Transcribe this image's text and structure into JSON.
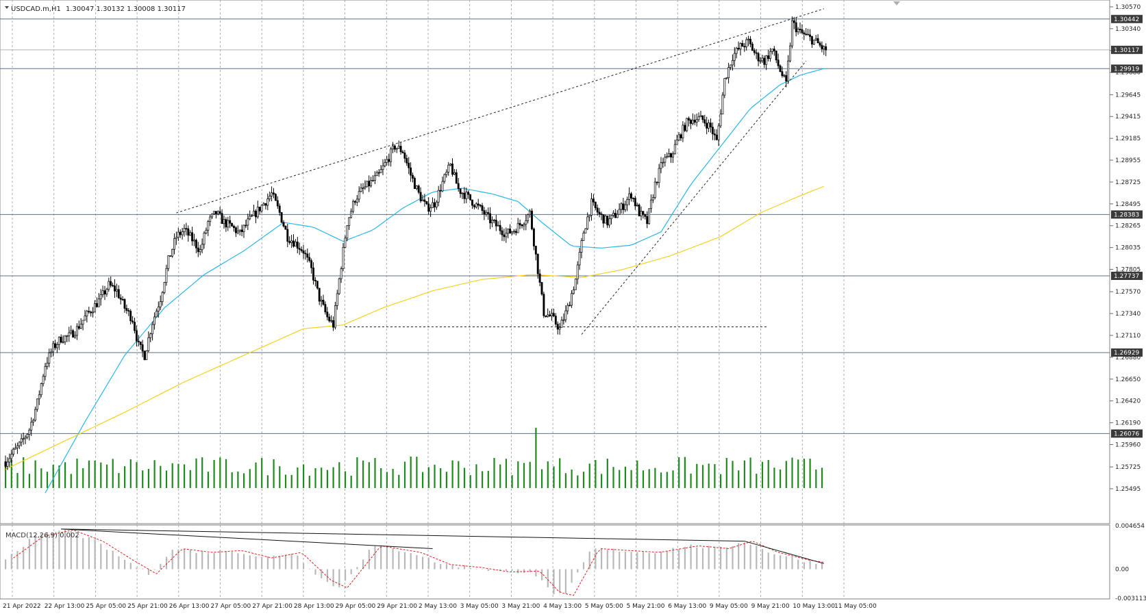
{
  "header": {
    "symbol": "USDCAD.m,H1",
    "ohlc": "1.30047 1.30132 1.30008 1.30117"
  },
  "colors": {
    "candle": "#000000",
    "ma_fast": "#29b6e8",
    "ma_slow": "#f5d21c",
    "volume": "#1e8a1e",
    "macd_hist": "#b8b8b8",
    "macd_signal": "#e02020",
    "grid": "#9a9a9a",
    "hline": "#5a6e8c"
  },
  "chart_data": [
    {
      "type": "candlestick",
      "ylim": [
        1.25495,
        1.3057
      ],
      "price_ticks": [
        "1.30570",
        "1.30340",
        "1.30110",
        "1.29880",
        "1.29645",
        "1.29415",
        "1.29185",
        "1.28955",
        "1.28725",
        "1.28495",
        "1.28265",
        "1.28035",
        "1.27805",
        "1.27570",
        "1.27340",
        "1.27110",
        "1.26880",
        "1.26650",
        "1.26420",
        "1.26190",
        "1.25960",
        "1.25725",
        "1.25495"
      ],
      "horizontal_levels": [
        "1.30442",
        "1.29919",
        "1.28383",
        "1.27737",
        "1.26929",
        "1.26076"
      ],
      "current_price": "1.30117",
      "time_labels": [
        "21 Apr 2022",
        "22 Apr 13:00",
        "25 Apr 05:00",
        "25 Apr 21:00",
        "26 Apr 13:00",
        "27 Apr 05:00",
        "27 Apr 21:00",
        "28 Apr 13:00",
        "29 Apr 05:00",
        "29 Apr 21:00",
        "2 May 13:00",
        "3 May 05:00",
        "3 May 21:00",
        "4 May 13:00",
        "5 May 05:00",
        "5 May 21:00",
        "6 May 13:00",
        "9 May 05:00",
        "9 May 21:00",
        "10 May 13:00",
        "11 May 05:00"
      ],
      "close_path": [
        [
          0,
          1.2578
        ],
        [
          4,
          1.2588
        ],
        [
          8,
          1.2598
        ],
        [
          12,
          1.2612
        ],
        [
          16,
          1.264
        ],
        [
          20,
          1.268
        ],
        [
          24,
          1.2698
        ],
        [
          28,
          1.2708
        ],
        [
          32,
          1.271
        ],
        [
          36,
          1.2718
        ],
        [
          40,
          1.273
        ],
        [
          44,
          1.274
        ],
        [
          48,
          1.275
        ],
        [
          52,
          1.2764
        ],
        [
          56,
          1.2758
        ],
        [
          60,
          1.274
        ],
        [
          64,
          1.2728
        ],
        [
          67,
          1.27
        ],
        [
          70,
          1.269
        ],
        [
          74,
          1.2725
        ],
        [
          78,
          1.275
        ],
        [
          82,
          1.279
        ],
        [
          86,
          1.2815
        ],
        [
          90,
          1.2822
        ],
        [
          94,
          1.2812
        ],
        [
          98,
          1.28
        ],
        [
          102,
          1.283
        ],
        [
          106,
          1.284
        ],
        [
          110,
          1.283
        ],
        [
          114,
          1.2825
        ],
        [
          118,
          1.2818
        ],
        [
          122,
          1.283
        ],
        [
          126,
          1.284
        ],
        [
          130,
          1.285
        ],
        [
          134,
          1.286
        ],
        [
          138,
          1.284
        ],
        [
          142,
          1.2815
        ],
        [
          146,
          1.2808
        ],
        [
          150,
          1.28
        ],
        [
          154,
          1.278
        ],
        [
          158,
          1.275
        ],
        [
          162,
          1.273
        ],
        [
          165,
          1.2722
        ],
        [
          168,
          1.277
        ],
        [
          172,
          1.283
        ],
        [
          176,
          1.2855
        ],
        [
          180,
          1.2865
        ],
        [
          184,
          1.2872
        ],
        [
          188,
          1.288
        ],
        [
          192,
          1.2895
        ],
        [
          196,
          1.291
        ],
        [
          200,
          1.2905
        ],
        [
          204,
          1.288
        ],
        [
          208,
          1.286
        ],
        [
          212,
          1.2845
        ],
        [
          216,
          1.285
        ],
        [
          220,
          1.2872
        ],
        [
          224,
          1.289
        ],
        [
          228,
          1.2865
        ],
        [
          232,
          1.2858
        ],
        [
          236,
          1.285
        ],
        [
          240,
          1.2842
        ],
        [
          244,
          1.2832
        ],
        [
          248,
          1.2825
        ],
        [
          252,
          1.2818
        ],
        [
          256,
          1.2822
        ],
        [
          260,
          1.283
        ],
        [
          264,
          1.284
        ],
        [
          268,
          1.278
        ],
        [
          271,
          1.2735
        ],
        [
          275,
          1.273
        ],
        [
          279,
          1.2718
        ],
        [
          283,
          1.274
        ],
        [
          287,
          1.277
        ],
        [
          291,
          1.282
        ],
        [
          295,
          1.285
        ],
        [
          299,
          1.2838
        ],
        [
          303,
          1.283
        ],
        [
          307,
          1.2838
        ],
        [
          311,
          1.2848
        ],
        [
          315,
          1.286
        ],
        [
          319,
          1.284
        ],
        [
          323,
          1.283
        ],
        [
          327,
          1.287
        ],
        [
          331,
          1.2895
        ],
        [
          335,
          1.29
        ],
        [
          339,
          1.292
        ],
        [
          343,
          1.2935
        ],
        [
          347,
          1.294
        ],
        [
          351,
          1.2938
        ],
        [
          355,
          1.293
        ],
        [
          358,
          1.2915
        ],
        [
          362,
          1.298
        ],
        [
          366,
          1.3005
        ],
        [
          370,
          1.3015
        ],
        [
          374,
          1.302
        ],
        [
          378,
          1.3005
        ],
        [
          382,
          1.3
        ],
        [
          386,
          1.3012
        ],
        [
          390,
          1.299
        ],
        [
          393,
          1.2975
        ],
        [
          396,
          1.304
        ],
        [
          400,
          1.303
        ],
        [
          404,
          1.3025
        ],
        [
          408,
          1.302
        ],
        [
          412,
          1.3012
        ]
      ],
      "series": [
        {
          "name": "",
          "kind": "ma_fast",
          "values": [
            [
              20,
              1.2545
            ],
            [
              40,
              1.262
            ],
            [
              60,
              1.269
            ],
            [
              80,
              1.274
            ],
            [
              100,
              1.2775
            ],
            [
              120,
              1.28
            ],
            [
              140,
              1.283
            ],
            [
              155,
              1.2825
            ],
            [
              170,
              1.281
            ],
            [
              185,
              1.2822
            ],
            [
              200,
              1.2845
            ],
            [
              215,
              1.2862
            ],
            [
              230,
              1.2866
            ],
            [
              245,
              1.286
            ],
            [
              258,
              1.2852
            ],
            [
              270,
              1.283
            ],
            [
              285,
              1.2805
            ],
            [
              300,
              1.2803
            ],
            [
              315,
              1.2806
            ],
            [
              330,
              1.282
            ],
            [
              345,
              1.287
            ],
            [
              360,
              1.291
            ],
            [
              375,
              1.295
            ],
            [
              390,
              1.2975
            ],
            [
              400,
              1.2985
            ],
            [
              412,
              1.2992
            ]
          ]
        },
        {
          "name": "",
          "kind": "ma_slow",
          "values": [
            [
              0,
              1.257
            ],
            [
              30,
              1.26
            ],
            [
              60,
              1.263
            ],
            [
              90,
              1.2662
            ],
            [
              120,
              1.269
            ],
            [
              150,
              1.2718
            ],
            [
              170,
              1.2722
            ],
            [
              190,
              1.274
            ],
            [
              215,
              1.2758
            ],
            [
              240,
              1.277
            ],
            [
              265,
              1.2775
            ],
            [
              290,
              1.2772
            ],
            [
              310,
              1.278
            ],
            [
              335,
              1.2795
            ],
            [
              360,
              1.2815
            ],
            [
              380,
              1.284
            ],
            [
              400,
              1.2858
            ],
            [
              412,
              1.2868
            ]
          ]
        }
      ],
      "trendlines": [
        [
          [
            86,
            1.284
          ],
          [
            412,
            1.3055
          ]
        ],
        [
          [
            171,
            1.272
          ],
          [
            384,
            1.272
          ]
        ],
        [
          [
            290,
            1.2712
          ],
          [
            403,
            1.3
          ]
        ]
      ]
    },
    {
      "type": "bar",
      "title": "",
      "values_note": "tick volume (relative)",
      "spike_index": 268
    },
    {
      "type": "macd",
      "label": "MACD(12,26,9) 0.002",
      "ylim": [
        -0.003113,
        0.004654
      ],
      "ticks": [
        "0.004654",
        "0.00",
        "-0.003113"
      ],
      "hist_path": [
        [
          0,
          0.0012
        ],
        [
          15,
          0.0035
        ],
        [
          30,
          0.0042
        ],
        [
          45,
          0.003
        ],
        [
          60,
          0.001
        ],
        [
          72,
          -0.0005
        ],
        [
          85,
          0.0022
        ],
        [
          100,
          0.0018
        ],
        [
          115,
          0.002
        ],
        [
          130,
          0.0012
        ],
        [
          145,
          0.0018
        ],
        [
          160,
          -0.0012
        ],
        [
          168,
          -0.002
        ],
        [
          185,
          0.0025
        ],
        [
          205,
          0.0018
        ],
        [
          220,
          0.0005
        ],
        [
          235,
          0.0002
        ],
        [
          250,
          -0.0003
        ],
        [
          265,
          -0.0002
        ],
        [
          275,
          -0.0025
        ],
        [
          282,
          -0.0028
        ],
        [
          295,
          0.0022
        ],
        [
          310,
          0.002
        ],
        [
          325,
          0.0018
        ],
        [
          345,
          0.0025
        ],
        [
          360,
          0.0022
        ],
        [
          372,
          0.003
        ],
        [
          385,
          0.0018
        ],
        [
          400,
          0.001
        ],
        [
          412,
          0.0006
        ]
      ],
      "divergence_lines": [
        [
          [
            28,
            0.0043
          ],
          [
            215,
            0.0022
          ]
        ],
        [
          [
            28,
            0.0043
          ],
          [
            372,
            0.003
          ]
        ],
        [
          [
            372,
            0.003
          ],
          [
            412,
            0.0006
          ]
        ]
      ]
    }
  ]
}
